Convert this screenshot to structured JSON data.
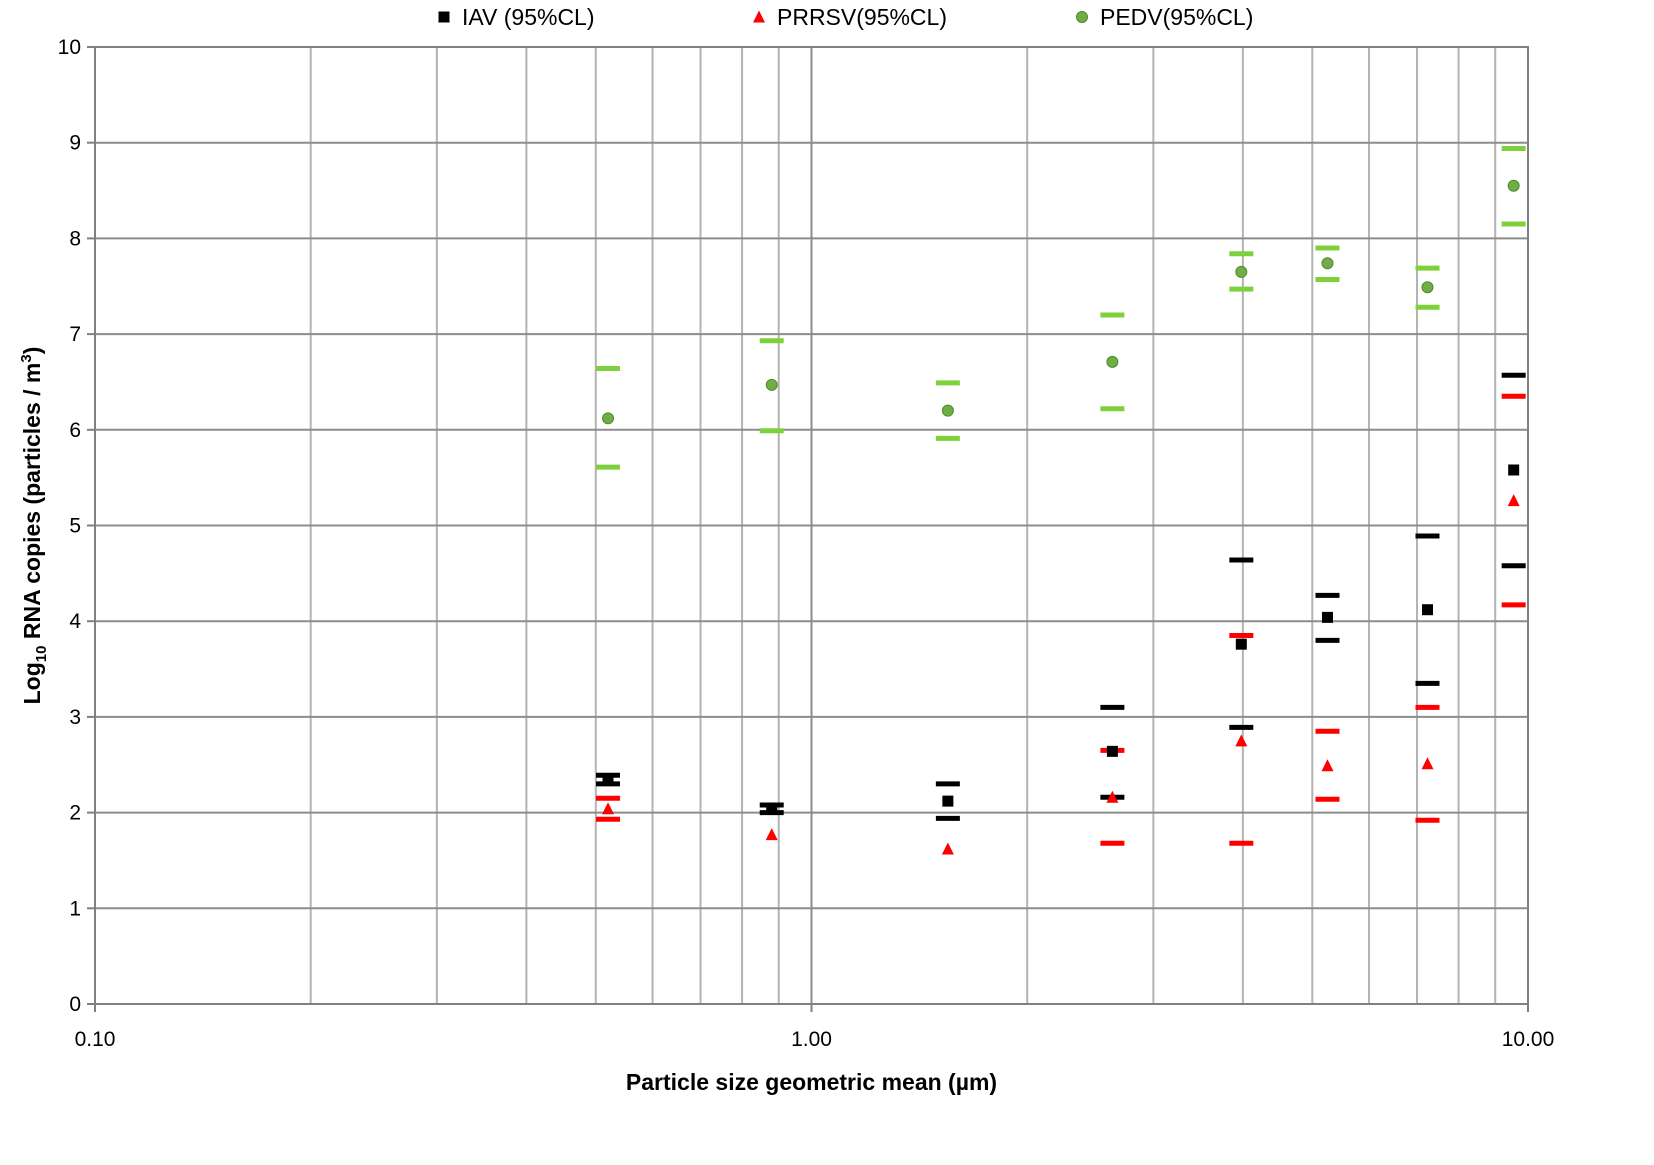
{
  "chart_data": {
    "type": "scatter",
    "x_scale": "log",
    "xlabel": "Particle size geometric mean (µm)",
    "ylabel_prefix": "Log",
    "ylabel_sub": "10",
    "ylabel_main": " RNA copies  (particles / m",
    "ylabel_sup": "3",
    "ylabel_close": ")",
    "xlim": [
      0.1,
      10.0
    ],
    "ylim": [
      0,
      10
    ],
    "grid": true,
    "legend_position": "top",
    "x_ticks": [
      {
        "value": 0.1,
        "label": "0.10"
      },
      {
        "value": 1.0,
        "label": "1.00"
      },
      {
        "value": 10.0,
        "label": "10.00"
      }
    ],
    "y_ticks": [
      {
        "value": 0,
        "label": "0"
      },
      {
        "value": 1,
        "label": "1"
      },
      {
        "value": 2,
        "label": "2"
      },
      {
        "value": 3,
        "label": "3"
      },
      {
        "value": 4,
        "label": "4"
      },
      {
        "value": 5,
        "label": "5"
      },
      {
        "value": 6,
        "label": "6"
      },
      {
        "value": 7,
        "label": "7"
      },
      {
        "value": 8,
        "label": "8"
      },
      {
        "value": 9,
        "label": "9"
      },
      {
        "value": 10,
        "label": "10"
      }
    ],
    "series": [
      {
        "name": "IAV (95%CL)",
        "marker": "square",
        "color": "#000000",
        "ci_color": "#000000",
        "points": [
          {
            "x": 0.52,
            "y": 2.34,
            "lo": 2.3,
            "hi": 2.39
          },
          {
            "x": 0.88,
            "y": 2.04,
            "lo": 2.0,
            "hi": 2.08
          },
          {
            "x": 1.55,
            "y": 2.12,
            "lo": 1.94,
            "hi": 2.3
          },
          {
            "x": 2.63,
            "y": 2.64,
            "lo": 2.16,
            "hi": 3.1
          },
          {
            "x": 3.98,
            "y": 3.76,
            "lo": 2.89,
            "hi": 4.64
          },
          {
            "x": 5.25,
            "y": 4.04,
            "lo": 3.8,
            "hi": 4.27
          },
          {
            "x": 7.24,
            "y": 4.12,
            "lo": 3.35,
            "hi": 4.89
          },
          {
            "x": 9.55,
            "y": 5.58,
            "lo": 4.58,
            "hi": 6.57
          }
        ]
      },
      {
        "name": "PRRSV(95%CL)",
        "marker": "triangle",
        "color": "#ff0000",
        "ci_color": "#ff0000",
        "points": [
          {
            "x": 0.52,
            "y": 2.04,
            "lo": 1.93,
            "hi": 2.15
          },
          {
            "x": 0.88,
            "y": 1.77,
            "lo": null,
            "hi": null
          },
          {
            "x": 1.55,
            "y": 1.62,
            "lo": null,
            "hi": null
          },
          {
            "x": 2.63,
            "y": 2.16,
            "lo": 1.68,
            "hi": 2.65
          },
          {
            "x": 3.98,
            "y": 2.75,
            "lo": 1.68,
            "hi": 3.85
          },
          {
            "x": 5.25,
            "y": 2.49,
            "lo": 2.14,
            "hi": 2.85
          },
          {
            "x": 7.24,
            "y": 2.51,
            "lo": 1.92,
            "hi": 3.1
          },
          {
            "x": 9.55,
            "y": 5.26,
            "lo": 4.17,
            "hi": 6.35
          }
        ]
      },
      {
        "name": "PEDV(95%CL)",
        "marker": "circle",
        "color": "#70ad47",
        "ci_color": "#7fd13b",
        "points": [
          {
            "x": 0.52,
            "y": 6.12,
            "lo": 5.61,
            "hi": 6.64
          },
          {
            "x": 0.88,
            "y": 6.47,
            "lo": 5.99,
            "hi": 6.93
          },
          {
            "x": 1.55,
            "y": 6.2,
            "lo": 5.91,
            "hi": 6.49
          },
          {
            "x": 2.63,
            "y": 6.71,
            "lo": 6.22,
            "hi": 7.2
          },
          {
            "x": 3.98,
            "y": 7.65,
            "lo": 7.47,
            "hi": 7.84
          },
          {
            "x": 5.25,
            "y": 7.74,
            "lo": 7.57,
            "hi": 7.9
          },
          {
            "x": 7.24,
            "y": 7.49,
            "lo": 7.28,
            "hi": 7.69
          },
          {
            "x": 9.55,
            "y": 8.55,
            "lo": 8.15,
            "hi": 8.94
          }
        ]
      }
    ]
  }
}
